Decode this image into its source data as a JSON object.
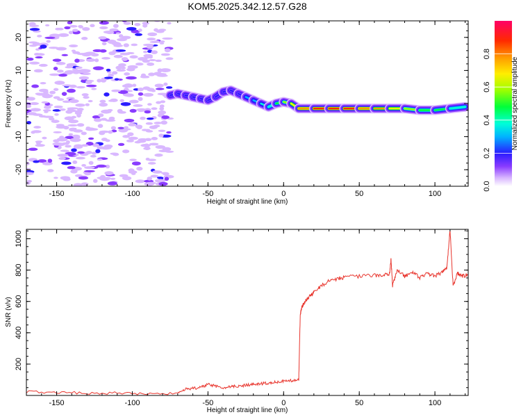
{
  "title": "KOM5.2025.342.12.57.G28",
  "chart_data": [
    {
      "type": "heatmap",
      "name": "spectrogram",
      "xlabel": "Height of straight line (km)",
      "ylabel": "Frequency (Hz)",
      "xlim": [
        -170,
        122
      ],
      "ylim": [
        -25,
        25
      ],
      "xticks": [
        -150,
        -100,
        -50,
        0,
        50,
        100
      ],
      "yticks": [
        -20,
        -10,
        0,
        10,
        20
      ],
      "colorbar": {
        "label": "Normalized spectral amplitude",
        "range": [
          0,
          1
        ],
        "ticks": [
          0.0,
          0.2,
          0.4,
          0.6,
          0.8
        ]
      },
      "ridge_track": {
        "x": [
          -75,
          -70,
          -65,
          -60,
          -55,
          -50,
          -45,
          -40,
          -35,
          -30,
          -25,
          -20,
          -15,
          -10,
          -5,
          0,
          5,
          10,
          20,
          30,
          40,
          50,
          60,
          70,
          80,
          90,
          100,
          110,
          120
        ],
        "freq": [
          2.5,
          3,
          2.5,
          2,
          1.5,
          1,
          2,
          3.5,
          4,
          3,
          2,
          1,
          0,
          -1,
          0,
          0.5,
          0,
          -1.5,
          -1.5,
          -1.5,
          -1.5,
          -1.5,
          -1.5,
          -1.5,
          -1.5,
          -2,
          -2,
          -1.5,
          -1
        ],
        "peak_amplitude": [
          0.2,
          0.25,
          0.25,
          0.2,
          0.2,
          0.2,
          0.25,
          0.25,
          0.3,
          0.25,
          0.3,
          0.35,
          0.4,
          0.45,
          0.5,
          0.55,
          0.7,
          0.8,
          0.9,
          0.95,
          0.95,
          0.9,
          0.85,
          0.8,
          0.7,
          0.6,
          0.5,
          0.55,
          0.4
        ]
      },
      "noise_region_x": [
        -170,
        -75
      ]
    },
    {
      "type": "line",
      "name": "snr",
      "xlabel": "Height of straight line (km)",
      "ylabel": "SNR (v/v)",
      "xlim": [
        -170,
        122
      ],
      "ylim": [
        0,
        1060
      ],
      "xticks": [
        -150,
        -100,
        -50,
        0,
        50,
        100
      ],
      "yticks": [
        200,
        400,
        600,
        800,
        1000
      ],
      "series": [
        {
          "name": "SNR",
          "color": "#e8342c",
          "x": [
            -170,
            -150,
            -130,
            -110,
            -90,
            -70,
            -65,
            -60,
            -55,
            -50,
            -45,
            -40,
            -35,
            -30,
            -25,
            -20,
            -15,
            -10,
            -5,
            0,
            5,
            10,
            11,
            12,
            13,
            15,
            18,
            20,
            25,
            30,
            35,
            40,
            50,
            60,
            65,
            70,
            71,
            72,
            75,
            80,
            85,
            90,
            95,
            100,
            105,
            108,
            110,
            112,
            115,
            118,
            122
          ],
          "y": [
            25,
            20,
            15,
            15,
            12,
            10,
            40,
            45,
            50,
            70,
            60,
            45,
            55,
            60,
            65,
            70,
            75,
            80,
            85,
            90,
            95,
            100,
            520,
            560,
            580,
            610,
            640,
            660,
            700,
            730,
            745,
            755,
            760,
            765,
            770,
            775,
            870,
            700,
            800,
            760,
            790,
            750,
            780,
            760,
            790,
            820,
            1060,
            700,
            780,
            760,
            770
          ]
        }
      ]
    }
  ]
}
